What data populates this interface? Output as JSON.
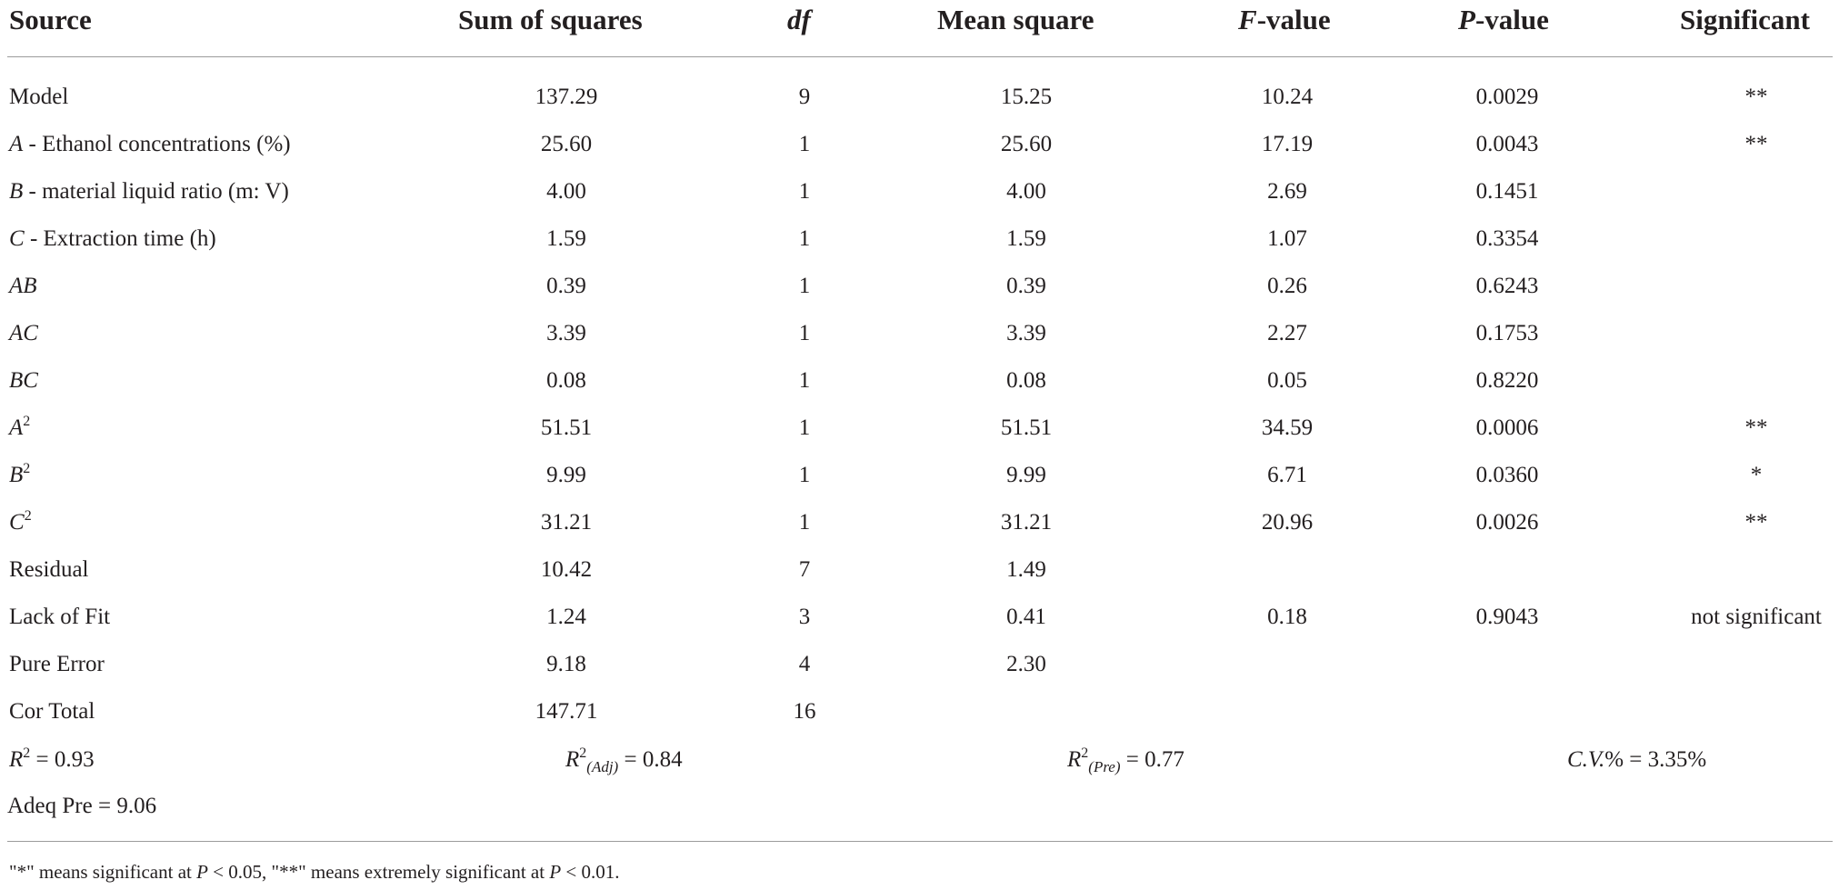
{
  "table": {
    "headers": {
      "source": "Source",
      "sum_of_squares": "Sum of squares",
      "df": "df",
      "mean_square": "Mean square",
      "f_value_letter": "F",
      "f_value_suffix": "-value",
      "p_value_letter": "P",
      "p_value_suffix": "-value",
      "significant": "Significant"
    },
    "rows": [
      {
        "var": "",
        "label": "Model",
        "sup": "",
        "ss": "137.29",
        "df": "9",
        "ms": "15.25",
        "f": "10.24",
        "p": "0.0029",
        "sig": "**"
      },
      {
        "var": "A",
        "label": " - Ethanol concentrations (%)",
        "sup": "",
        "ss": "25.60",
        "df": "1",
        "ms": "25.60",
        "f": "17.19",
        "p": "0.0043",
        "sig": "**"
      },
      {
        "var": "B",
        "label": " - material liquid ratio (m: V)",
        "sup": "",
        "ss": "4.00",
        "df": "1",
        "ms": "4.00",
        "f": "2.69",
        "p": "0.1451",
        "sig": ""
      },
      {
        "var": "C",
        "label": " - Extraction time (h)",
        "sup": "",
        "ss": "1.59",
        "df": "1",
        "ms": "1.59",
        "f": "1.07",
        "p": "0.3354",
        "sig": ""
      },
      {
        "var": "AB",
        "label": "",
        "sup": "",
        "ss": "0.39",
        "df": "1",
        "ms": "0.39",
        "f": "0.26",
        "p": "0.6243",
        "sig": ""
      },
      {
        "var": "AC",
        "label": "",
        "sup": "",
        "ss": "3.39",
        "df": "1",
        "ms": "3.39",
        "f": "2.27",
        "p": "0.1753",
        "sig": ""
      },
      {
        "var": "BC",
        "label": "",
        "sup": "",
        "ss": "0.08",
        "df": "1",
        "ms": "0.08",
        "f": "0.05",
        "p": "0.8220",
        "sig": ""
      },
      {
        "var": "A",
        "label": "",
        "sup": "2",
        "ss": "51.51",
        "df": "1",
        "ms": "51.51",
        "f": "34.59",
        "p": "0.0006",
        "sig": "**"
      },
      {
        "var": "B",
        "label": "",
        "sup": "2",
        "ss": "9.99",
        "df": "1",
        "ms": "9.99",
        "f": "6.71",
        "p": "0.0360",
        "sig": "*"
      },
      {
        "var": "C",
        "label": "",
        "sup": "2",
        "ss": "31.21",
        "df": "1",
        "ms": "31.21",
        "f": "20.96",
        "p": "0.0026",
        "sig": "**"
      },
      {
        "var": "",
        "label": "Residual",
        "sup": "",
        "ss": "10.42",
        "df": "7",
        "ms": "1.49",
        "f": "",
        "p": "",
        "sig": ""
      },
      {
        "var": "",
        "label": "Lack of Fit",
        "sup": "",
        "ss": "1.24",
        "df": "3",
        "ms": "0.41",
        "f": "0.18",
        "p": "0.9043",
        "sig": "not significant"
      },
      {
        "var": "",
        "label": "Pure Error",
        "sup": "",
        "ss": "9.18",
        "df": "4",
        "ms": "2.30",
        "f": "",
        "p": "",
        "sig": ""
      },
      {
        "var": "",
        "label": "Cor Total",
        "sup": "",
        "ss": "147.71",
        "df": "16",
        "ms": "",
        "f": "",
        "p": "",
        "sig": ""
      }
    ],
    "fit_stats": {
      "r2_var": "R",
      "r2_sup": "2",
      "r2_value": " = 0.93",
      "r2adj_var": "R",
      "r2adj_sup": "2",
      "r2adj_sub": "(Adj)",
      "r2adj_value": " = 0.84",
      "r2pre_var": "R",
      "r2pre_sup": "2",
      "r2pre_sub": "(Pre)",
      "r2pre_value": " = 0.77",
      "cv_label": "C.V.",
      "cv_value": "% = 3.35%",
      "adeq_pre": "Adeq Pre = 9.06"
    },
    "footnote": {
      "part1": "\"*\" means significant at ",
      "p1_var": "P",
      "part2": " < 0.05, \"**\" means extremely significant at ",
      "p2_var": "P",
      "part3": " < 0.01."
    }
  }
}
